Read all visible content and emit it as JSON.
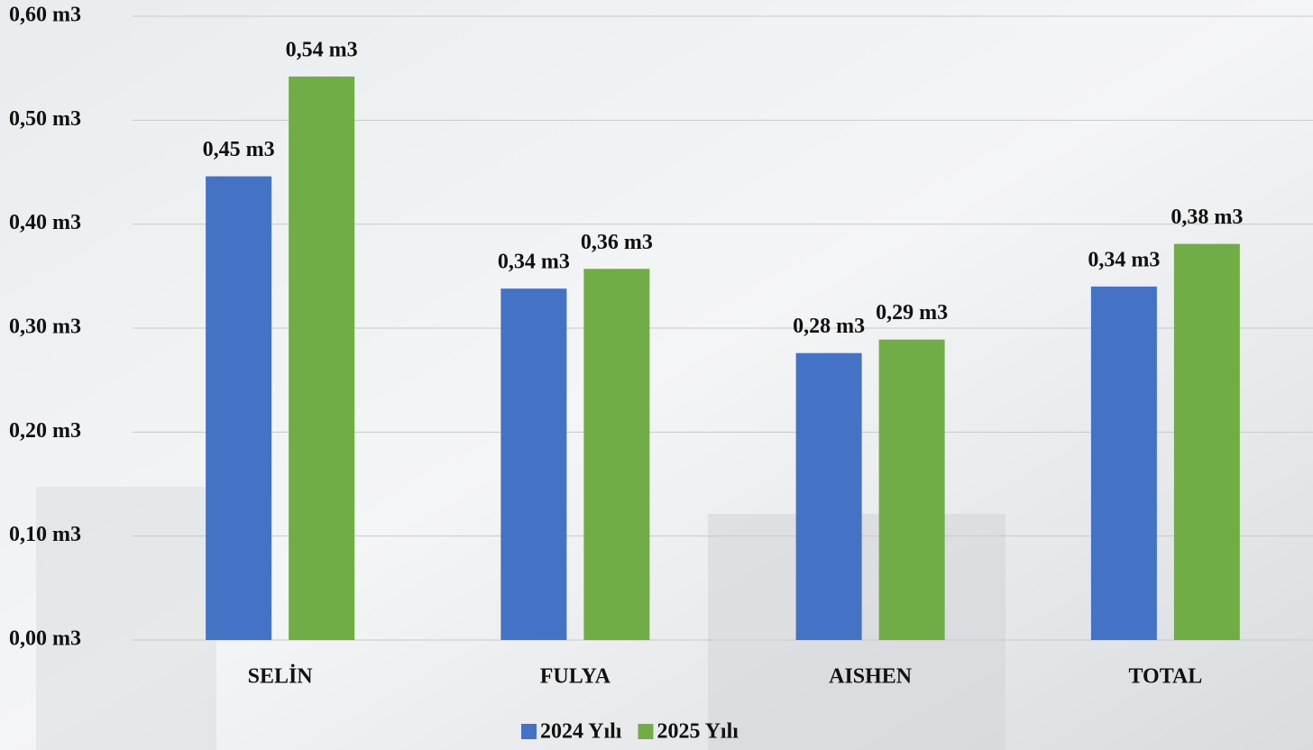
{
  "chart_data": {
    "type": "bar",
    "categories": [
      "SELİN",
      "FULYA",
      "AISHEN",
      "TOTAL"
    ],
    "series": [
      {
        "name": "2024 Yılı",
        "color": "#4472c4",
        "values": [
          0.446,
          0.338,
          0.276,
          0.34
        ],
        "value_labels": [
          "0,45 m3",
          "0,34 m3",
          "0,28 m3",
          "0,34 m3"
        ]
      },
      {
        "name": "2025 Yılı",
        "color": "#70ad47",
        "values": [
          0.542,
          0.357,
          0.289,
          0.381
        ],
        "value_labels": [
          "0,54 m3",
          "0,36 m3",
          "0,29 m3",
          "0,38 m3"
        ]
      }
    ],
    "ylim": [
      0,
      0.6
    ],
    "yticks": [
      {
        "value": 0,
        "label": "0,00 m3"
      },
      {
        "value": 0.1,
        "label": "0,10 m3"
      },
      {
        "value": 0.2,
        "label": "0,20 m3"
      },
      {
        "value": 0.3,
        "label": "0,30 m3"
      },
      {
        "value": 0.4,
        "label": "0,40 m3"
      },
      {
        "value": 0.5,
        "label": "0,50 m3"
      },
      {
        "value": 0.6,
        "label": "0,60 m3"
      }
    ],
    "grid": true,
    "legend": "bottom"
  }
}
